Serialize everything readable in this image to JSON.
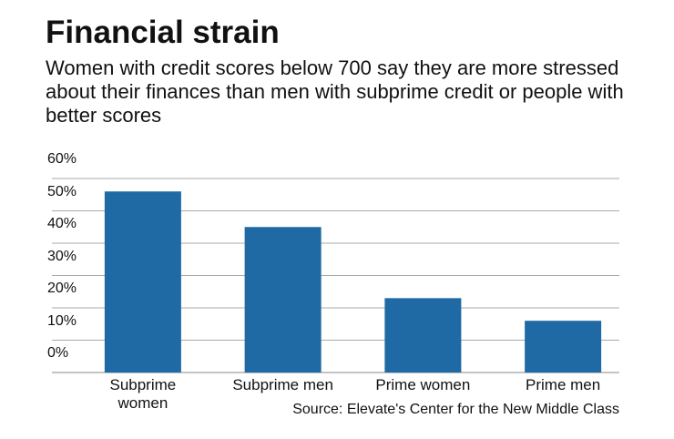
{
  "chart_data": {
    "type": "bar",
    "title": "Financial strain",
    "subtitle": "Women with credit scores below 700 say they are more stressed about their finances than men with subprime credit or people with better scores",
    "categories": [
      "Subprime women",
      "Subprime men",
      "Prime women",
      "Prime men"
    ],
    "values": [
      56,
      45,
      23,
      16
    ],
    "color": "#1f6aa5",
    "ylim": [
      0,
      60
    ],
    "yticks": [
      {
        "value": 0,
        "label": "0%"
      },
      {
        "value": 10,
        "label": "10%"
      },
      {
        "value": 20,
        "label": "20%"
      },
      {
        "value": 30,
        "label": "30%"
      },
      {
        "value": 40,
        "label": "40%"
      },
      {
        "value": 50,
        "label": "50%"
      },
      {
        "value": 60,
        "label": "60%"
      }
    ],
    "grid": true,
    "source": "Source: Elevate's Center for the New Middle Class"
  }
}
